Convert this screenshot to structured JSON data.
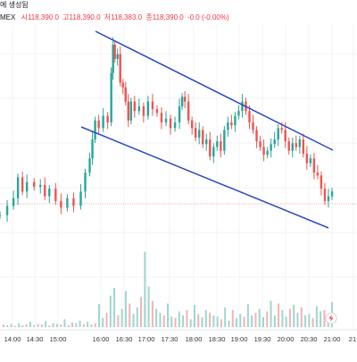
{
  "header": {
    "line1": "에 생성됨",
    "line2_prefix": "MEX",
    "open": "시118,390.0",
    "high": "고118,390.0",
    "low": "저118,383.0",
    "close": "종118,390.0",
    "change": "-0.0 (-0.00%)"
  },
  "colors": {
    "up": "#26a69a",
    "down": "#ef5350",
    "trendline": "#2b4bbf",
    "price_line": "#f4b6b6",
    "grid": "#f2f3f5",
    "axis_text": "#333333",
    "header_text": "#131722"
  },
  "axis_icon": "lightning-icon",
  "chart_data": {
    "type": "candlestick",
    "x_ticks": [
      "14:00",
      "14:30",
      "15:00",
      "16:00",
      "16:30",
      "17:00",
      "17:30",
      "18:00",
      "18:30",
      "19:00",
      "19:30",
      "20:00",
      "20:30",
      "21:00",
      "21:"
    ],
    "y_axis_visible": false,
    "grid": true,
    "price_line": 118390.0,
    "price_series": [
      [
        0,
        20
      ],
      [
        8,
        30
      ],
      [
        15,
        38
      ],
      [
        20,
        60
      ],
      [
        25,
        45
      ],
      [
        30,
        55
      ],
      [
        38,
        50
      ],
      [
        45,
        52
      ],
      [
        50,
        40
      ],
      [
        55,
        48
      ],
      [
        62,
        35
      ],
      [
        68,
        28
      ],
      [
        75,
        38
      ],
      [
        82,
        30
      ],
      [
        90,
        45
      ],
      [
        95,
        65
      ],
      [
        100,
        80
      ],
      [
        103,
        100
      ],
      [
        106,
        120
      ],
      [
        110,
        112
      ],
      [
        115,
        125
      ],
      [
        120,
        118
      ],
      [
        124,
        170
      ],
      [
        126,
        200
      ],
      [
        128,
        185
      ],
      [
        131,
        190
      ],
      [
        134,
        160
      ],
      [
        137,
        155
      ],
      [
        140,
        140
      ],
      [
        143,
        120
      ],
      [
        146,
        140
      ],
      [
        150,
        130
      ],
      [
        155,
        135
      ],
      [
        160,
        125
      ],
      [
        165,
        140
      ],
      [
        170,
        132
      ],
      [
        175,
        128
      ],
      [
        180,
        118
      ],
      [
        185,
        122
      ],
      [
        190,
        112
      ],
      [
        195,
        118
      ],
      [
        200,
        135
      ],
      [
        203,
        145
      ],
      [
        206,
        140
      ],
      [
        210,
        120
      ],
      [
        214,
        112
      ],
      [
        218,
        102
      ],
      [
        222,
        110
      ],
      [
        226,
        95
      ],
      [
        230,
        100
      ],
      [
        234,
        82
      ],
      [
        238,
        92
      ],
      [
        242,
        98
      ],
      [
        246,
        88
      ],
      [
        250,
        110
      ],
      [
        254,
        118
      ],
      [
        258,
        115
      ],
      [
        262,
        125
      ],
      [
        266,
        130
      ],
      [
        270,
        140
      ],
      [
        274,
        130
      ],
      [
        278,
        118
      ],
      [
        282,
        110
      ],
      [
        286,
        98
      ],
      [
        290,
        92
      ],
      [
        294,
        84
      ],
      [
        298,
        88
      ],
      [
        302,
        95
      ],
      [
        306,
        100
      ],
      [
        310,
        112
      ],
      [
        314,
        110
      ],
      [
        318,
        98
      ],
      [
        322,
        88
      ],
      [
        326,
        96
      ],
      [
        330,
        92
      ],
      [
        334,
        100
      ],
      [
        338,
        85
      ],
      [
        342,
        75
      ],
      [
        346,
        80
      ],
      [
        350,
        65
      ],
      [
        354,
        62
      ],
      [
        358,
        48
      ],
      [
        362,
        35
      ],
      [
        366,
        40
      ],
      [
        370,
        45
      ]
    ],
    "volume_series": [
      4,
      3,
      5,
      2,
      6,
      3,
      4,
      8,
      3,
      5,
      4,
      9,
      3,
      6,
      5,
      4,
      12,
      3,
      7,
      6,
      10,
      5,
      8,
      4,
      6,
      35,
      14,
      22,
      48,
      60,
      18,
      28,
      55,
      36,
      20,
      30,
      46,
      115,
      62,
      40,
      28,
      22,
      18,
      36,
      16,
      14,
      24,
      18,
      26,
      12,
      34,
      20,
      15,
      26,
      22,
      18,
      16,
      12,
      30,
      10,
      26,
      14,
      20,
      16,
      35,
      18,
      22,
      28,
      15,
      24,
      40,
      18,
      36,
      26,
      16,
      28,
      34,
      22,
      30,
      18,
      20,
      14,
      32,
      24,
      26,
      20,
      38
    ]
  }
}
